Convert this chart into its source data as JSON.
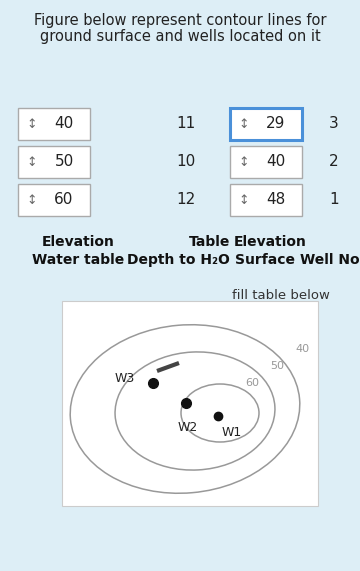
{
  "bg_color": "#ddeef6",
  "title_line1": "Figure below represent contour lines for",
  "title_line2": "ground surface and wells located on it",
  "fill_table_text": "fill table below",
  "header_row1_col1": "Water table",
  "header_row1_col2": "Depth to H₂O",
  "header_row1_col3": "Surface",
  "header_row1_col4": "Well No",
  "header_row2_col1": "Elevation",
  "header_row2_col2": "Table",
  "header_row2_col3": "Elevation",
  "wt_elevations": [
    60,
    50,
    40
  ],
  "depth_to_wt": [
    12,
    10,
    11
  ],
  "surface_elevations": [
    48,
    40,
    29
  ],
  "well_nos": [
    1,
    2,
    3
  ],
  "diagram_bg": "#ffffff",
  "contour_color": "#999999",
  "well_dot_color": "#111111",
  "box_border_normal": "#aaaaaa",
  "box_border_highlight": "#4a90d9",
  "box_fill": "#ffffff",
  "title_fontsize": 10.5,
  "header_fontsize": 10,
  "value_fontsize": 11
}
